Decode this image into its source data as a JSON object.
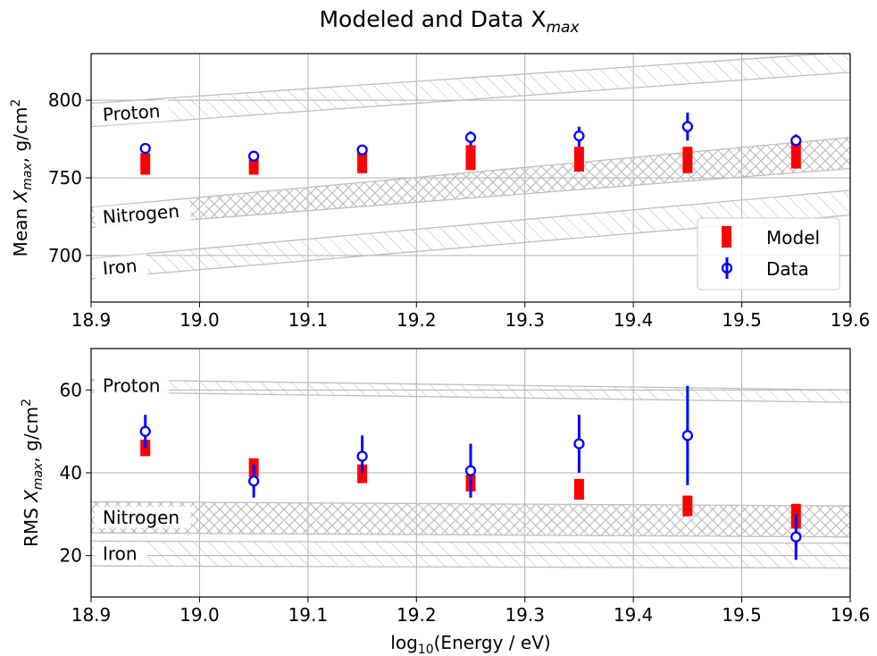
{
  "figure": {
    "title": "Modeled and Data X",
    "title_sub": "max"
  },
  "colors": {
    "model": "#ff0000",
    "data": "#0000ff",
    "band": "#bfbfbf",
    "grid": "#b0b0b0"
  },
  "chart_data": [
    {
      "type": "scatter",
      "panel": "top",
      "ylabel_prefix": "Mean ",
      "ylabel_x": "X",
      "ylabel_sub": "max",
      "ylabel_suffix": ", g/cm",
      "ylabel_sup": "2",
      "xlim": [
        18.9,
        19.6
      ],
      "ylim": [
        670,
        830
      ],
      "xticks": [
        "18.9",
        "19.0",
        "19.1",
        "19.2",
        "19.3",
        "19.4",
        "19.5",
        "19.6"
      ],
      "xtick_values": [
        18.9,
        19.0,
        19.1,
        19.2,
        19.3,
        19.4,
        19.5,
        19.6
      ],
      "yticks": [
        "700",
        "750",
        "800"
      ],
      "ytick_values": [
        700,
        750,
        800
      ],
      "grid": true,
      "legend": {
        "placement": "lower-right",
        "model_label": "Model",
        "data_label": "Data"
      },
      "bands": [
        {
          "name": "Proton",
          "hatch": "diagonal",
          "x": [
            18.9,
            19.6
          ],
          "low": [
            783,
            818
          ],
          "high": [
            798,
            831
          ]
        },
        {
          "name": "Nitrogen",
          "hatch": "cross",
          "x": [
            18.9,
            19.6
          ],
          "low": [
            718,
            756
          ],
          "high": [
            731,
            776
          ]
        },
        {
          "name": "Iron",
          "hatch": "diagonal",
          "x": [
            18.9,
            19.6
          ],
          "low": [
            685,
            726
          ],
          "high": [
            698,
            742
          ]
        }
      ],
      "model": {
        "x": [
          18.95,
          19.05,
          19.15,
          19.25,
          19.35,
          19.45,
          19.55
        ],
        "low": [
          752,
          752,
          753,
          755,
          754,
          753,
          756
        ],
        "high": [
          766,
          765,
          767,
          771,
          770,
          770,
          773
        ]
      },
      "data": {
        "x": [
          18.95,
          19.05,
          19.15,
          19.25,
          19.35,
          19.45,
          19.55
        ],
        "y": [
          769,
          764,
          768,
          776,
          777,
          783,
          774
        ],
        "err_low": [
          766,
          761,
          766,
          771,
          770,
          774,
          770
        ],
        "err_high": [
          772,
          767,
          771,
          780,
          783,
          792,
          778
        ]
      }
    },
    {
      "type": "scatter",
      "panel": "bottom",
      "ylabel_prefix": "RMS ",
      "ylabel_x": "X",
      "ylabel_sub": "max",
      "ylabel_suffix": ", g/cm",
      "ylabel_sup": "2",
      "xlabel_prefix": "log",
      "xlabel_sub": "10",
      "xlabel_suffix": "(Energy / eV)",
      "xlim": [
        18.9,
        19.6
      ],
      "ylim": [
        10,
        70
      ],
      "xticks": [
        "18.9",
        "19.0",
        "19.1",
        "19.2",
        "19.3",
        "19.4",
        "19.5",
        "19.6"
      ],
      "xtick_values": [
        18.9,
        19.0,
        19.1,
        19.2,
        19.3,
        19.4,
        19.5,
        19.6
      ],
      "yticks": [
        "20",
        "40",
        "60"
      ],
      "ytick_values": [
        20,
        40,
        60
      ],
      "grid": true,
      "bands": [
        {
          "name": "Proton",
          "hatch": "diagonal",
          "x": [
            18.9,
            19.6
          ],
          "low": [
            59.5,
            57
          ],
          "high": [
            62.5,
            60
          ]
        },
        {
          "name": "Nitrogen",
          "hatch": "cross",
          "x": [
            18.9,
            19.6
          ],
          "low": [
            25.5,
            24.5
          ],
          "high": [
            33,
            32
          ]
        },
        {
          "name": "Iron",
          "hatch": "diagonal",
          "x": [
            18.9,
            19.6
          ],
          "low": [
            17.5,
            17
          ],
          "high": [
            23.5,
            23
          ]
        }
      ],
      "model": {
        "x": [
          18.95,
          19.05,
          19.15,
          19.25,
          19.35,
          19.45,
          19.55
        ],
        "low": [
          44,
          39,
          37.5,
          35.5,
          33.5,
          29.5,
          26.5
        ],
        "high": [
          48,
          43.5,
          42,
          39.5,
          38.5,
          34.5,
          32.5
        ]
      },
      "data": {
        "x": [
          18.95,
          19.05,
          19.15,
          19.25,
          19.35,
          19.45,
          19.55
        ],
        "y": [
          50,
          38,
          44,
          40.5,
          47,
          49,
          24.5
        ],
        "err_low": [
          46,
          34,
          40,
          34,
          40,
          37,
          19
        ],
        "err_high": [
          54,
          42,
          49,
          47,
          54,
          61,
          30
        ]
      }
    }
  ]
}
